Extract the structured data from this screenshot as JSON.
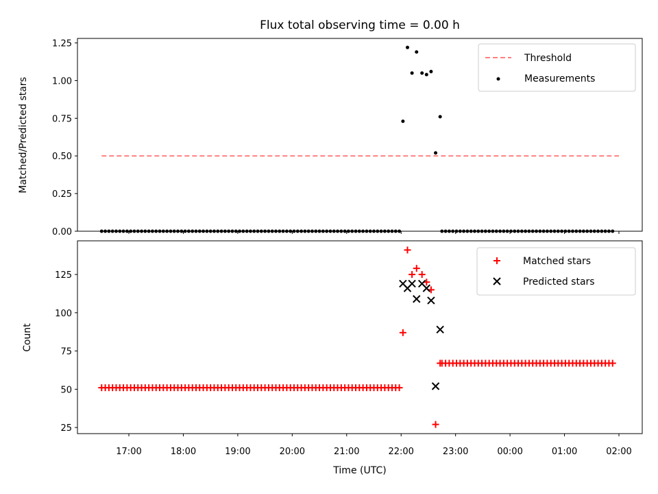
{
  "chart_data": [
    {
      "type": "scatter",
      "title": "Flux total observing time = 0.00 h",
      "ylabel": "Matched/Predicted stars",
      "xlabel": "",
      "ylim": [
        0,
        1.28
      ],
      "yticks": [
        "0.00",
        "0.25",
        "0.50",
        "0.75",
        "1.00",
        "1.25"
      ],
      "ytick_values": [
        0,
        0.25,
        0.5,
        0.75,
        1.0,
        1.25
      ],
      "legend_position": "top-right",
      "legend": [
        "Threshold",
        "Measurements"
      ],
      "threshold": {
        "name": "Threshold",
        "value": 0.5,
        "x_start": "16:30",
        "x_end": "02:00",
        "color": "#ff7f7f"
      },
      "measurements_name": "Measurements",
      "measurements_color": "#000000",
      "zero_series_1": {
        "start": "16:30",
        "end": "22:00",
        "step_minutes": 4,
        "value": 0
      },
      "zero_series_2": {
        "start": "22:45",
        "end": "01:55",
        "step_minutes": 4,
        "value": 0
      },
      "measurements": [
        {
          "x": "22:02",
          "y": 0.73
        },
        {
          "x": "22:07",
          "y": 1.22
        },
        {
          "x": "22:12",
          "y": 1.05
        },
        {
          "x": "22:17",
          "y": 1.19
        },
        {
          "x": "22:23",
          "y": 1.05
        },
        {
          "x": "22:28",
          "y": 1.04
        },
        {
          "x": "22:33",
          "y": 1.06
        },
        {
          "x": "22:38",
          "y": 0.52
        },
        {
          "x": "22:43",
          "y": 0.76
        }
      ]
    },
    {
      "type": "scatter",
      "ylabel": "Count",
      "xlabel": "Time (UTC)",
      "ylim": [
        21,
        147
      ],
      "yticks": [
        "25",
        "50",
        "75",
        "100",
        "125"
      ],
      "ytick_values": [
        25,
        50,
        75,
        100,
        125
      ],
      "xticks": [
        "17:00",
        "18:00",
        "19:00",
        "20:00",
        "21:00",
        "22:00",
        "23:00",
        "00:00",
        "01:00",
        "02:00"
      ],
      "legend_position": "top-right",
      "legend": [
        "Matched stars",
        "Predicted stars"
      ],
      "matched_color": "#ff0000",
      "predicted_color": "#000000",
      "matched_flat_1": {
        "start": "16:30",
        "end": "22:00",
        "step_minutes": 4,
        "value": 51
      },
      "matched_flat_2": {
        "start": "22:45",
        "end": "01:55",
        "step_minutes": 4,
        "value": 67
      },
      "matched": [
        {
          "x": "22:02",
          "y": 87
        },
        {
          "x": "22:07",
          "y": 141
        },
        {
          "x": "22:12",
          "y": 125
        },
        {
          "x": "22:17",
          "y": 129
        },
        {
          "x": "22:23",
          "y": 125
        },
        {
          "x": "22:28",
          "y": 120
        },
        {
          "x": "22:33",
          "y": 115
        },
        {
          "x": "22:38",
          "y": 27
        },
        {
          "x": "22:43",
          "y": 67
        }
      ],
      "predicted": [
        {
          "x": "22:02",
          "y": 119
        },
        {
          "x": "22:07",
          "y": 116
        },
        {
          "x": "22:12",
          "y": 119
        },
        {
          "x": "22:17",
          "y": 109
        },
        {
          "x": "22:23",
          "y": 119
        },
        {
          "x": "22:28",
          "y": 116
        },
        {
          "x": "22:33",
          "y": 108
        },
        {
          "x": "22:38",
          "y": 52
        },
        {
          "x": "22:43",
          "y": 89
        }
      ]
    }
  ]
}
